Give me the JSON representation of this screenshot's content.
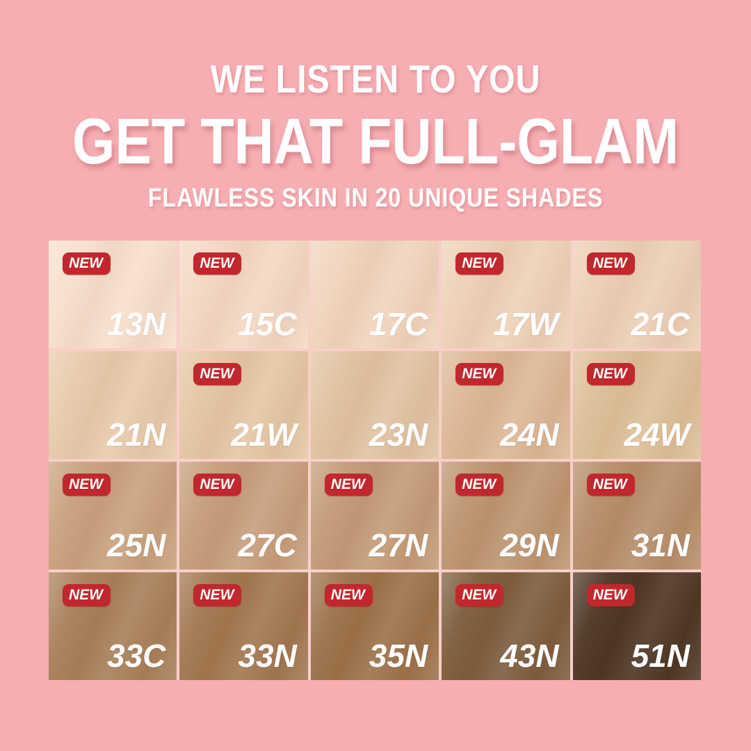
{
  "page": {
    "background_color": "#f6aeb3",
    "gap_line_color": "#f9cfc9"
  },
  "header": {
    "line1": "WE LISTEN TO YOU",
    "line2": "GET THAT FULL-GLAM",
    "line3": "FLAWLESS SKIN IN 20 UNIQUE SHADES",
    "text_color": "#ffffff"
  },
  "badge": {
    "label": "NEW",
    "background_color": "#c1282d",
    "text_color": "#ffffff"
  },
  "shade_grid": {
    "columns": 5,
    "rows": 4,
    "shades": [
      {
        "code": "13N",
        "color": "#f7dfcc",
        "new": true
      },
      {
        "code": "15C",
        "color": "#f4d8c3",
        "new": true
      },
      {
        "code": "17C",
        "color": "#f1d4bd",
        "new": false
      },
      {
        "code": "17W",
        "color": "#eed1b7",
        "new": true
      },
      {
        "code": "21C",
        "color": "#eccfb5",
        "new": true
      },
      {
        "code": "21N",
        "color": "#e8caab",
        "new": false
      },
      {
        "code": "21W",
        "color": "#e5c6a3",
        "new": true
      },
      {
        "code": "23N",
        "color": "#e1c2a1",
        "new": false
      },
      {
        "code": "24N",
        "color": "#dcb795",
        "new": true
      },
      {
        "code": "24W",
        "color": "#ddbf97",
        "new": true
      },
      {
        "code": "25N",
        "color": "#c9a07c",
        "new": true
      },
      {
        "code": "27C",
        "color": "#c69d7a",
        "new": true
      },
      {
        "code": "27N",
        "color": "#c39a76",
        "new": true
      },
      {
        "code": "29N",
        "color": "#bd946f",
        "new": true
      },
      {
        "code": "31N",
        "color": "#b68d68",
        "new": true
      },
      {
        "code": "33C",
        "color": "#a87e57",
        "new": true
      },
      {
        "code": "33N",
        "color": "#a1764e",
        "new": true
      },
      {
        "code": "35N",
        "color": "#9b7048",
        "new": true
      },
      {
        "code": "43N",
        "color": "#7c5b3b",
        "new": true
      },
      {
        "code": "51N",
        "color": "#4b3422",
        "new": true
      }
    ]
  }
}
